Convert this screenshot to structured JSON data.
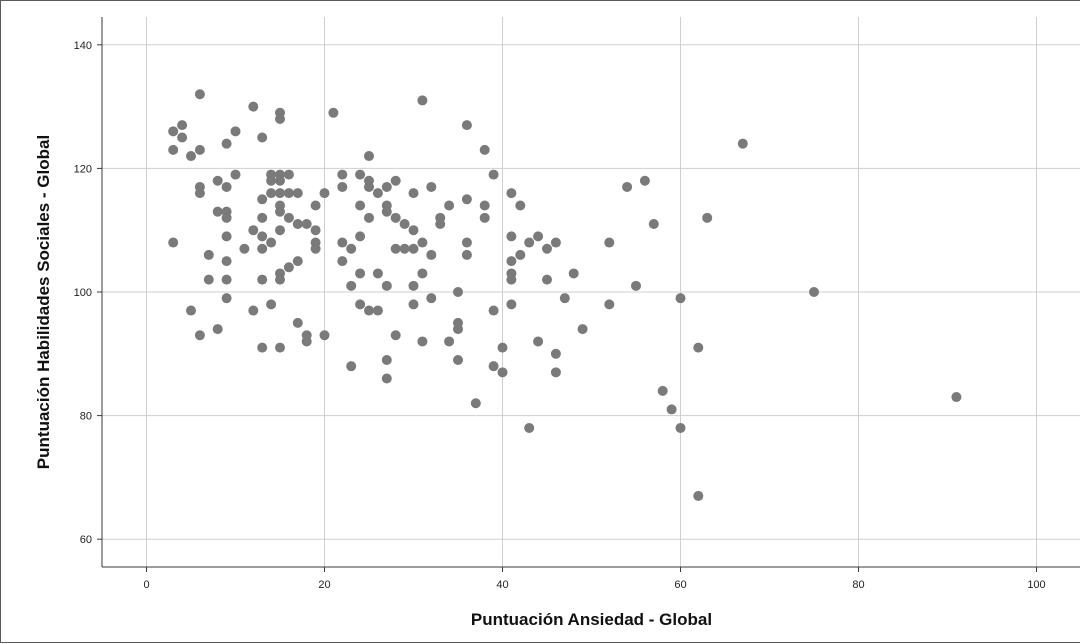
{
  "chart_data": {
    "type": "scatter",
    "title": "",
    "xlabel": "Puntuación Ansiedad - Global",
    "ylabel": "Puntuación Habilidades Sociales - Global",
    "xlim": [
      -5,
      105
    ],
    "ylim": [
      55.5,
      144.5
    ],
    "x_ticks": [
      0,
      20,
      40,
      60,
      80,
      100
    ],
    "y_ticks": [
      60,
      80,
      100,
      120,
      140
    ],
    "grid": true,
    "point_color": "#7a7a7a",
    "points": [
      [
        3,
        126
      ],
      [
        4,
        127
      ],
      [
        4,
        125
      ],
      [
        3,
        123
      ],
      [
        5,
        122
      ],
      [
        6,
        123
      ],
      [
        6,
        132
      ],
      [
        3,
        108
      ],
      [
        6,
        117
      ],
      [
        6,
        116
      ],
      [
        5,
        97
      ],
      [
        6,
        93
      ],
      [
        7,
        106
      ],
      [
        7,
        102
      ],
      [
        8,
        118
      ],
      [
        8,
        113
      ],
      [
        8,
        94
      ],
      [
        9,
        124
      ],
      [
        9,
        117
      ],
      [
        9,
        113
      ],
      [
        9,
        112
      ],
      [
        9,
        109
      ],
      [
        9,
        105
      ],
      [
        9,
        102
      ],
      [
        9,
        99
      ],
      [
        10,
        126
      ],
      [
        10,
        119
      ],
      [
        11,
        107
      ],
      [
        12,
        130
      ],
      [
        12,
        110
      ],
      [
        12,
        97
      ],
      [
        13,
        125
      ],
      [
        13,
        115
      ],
      [
        13,
        112
      ],
      [
        13,
        109
      ],
      [
        13,
        107
      ],
      [
        13,
        102
      ],
      [
        13,
        91
      ],
      [
        14,
        119
      ],
      [
        14,
        118
      ],
      [
        14,
        116
      ],
      [
        14,
        108
      ],
      [
        14,
        98
      ],
      [
        15,
        129
      ],
      [
        15,
        128
      ],
      [
        15,
        119
      ],
      [
        15,
        118
      ],
      [
        15,
        116
      ],
      [
        15,
        114
      ],
      [
        15,
        113
      ],
      [
        15,
        110
      ],
      [
        15,
        103
      ],
      [
        15,
        102
      ],
      [
        15,
        91
      ],
      [
        16,
        119
      ],
      [
        16,
        116
      ],
      [
        16,
        112
      ],
      [
        16,
        104
      ],
      [
        17,
        116
      ],
      [
        17,
        111
      ],
      [
        17,
        105
      ],
      [
        17,
        95
      ],
      [
        18,
        111
      ],
      [
        18,
        93
      ],
      [
        18,
        92
      ],
      [
        19,
        114
      ],
      [
        19,
        110
      ],
      [
        19,
        108
      ],
      [
        19,
        107
      ],
      [
        20,
        116
      ],
      [
        20,
        93
      ],
      [
        21,
        129
      ],
      [
        22,
        119
      ],
      [
        22,
        117
      ],
      [
        22,
        108
      ],
      [
        22,
        105
      ],
      [
        23,
        107
      ],
      [
        23,
        101
      ],
      [
        23,
        88
      ],
      [
        24,
        119
      ],
      [
        24,
        114
      ],
      [
        24,
        109
      ],
      [
        24,
        103
      ],
      [
        24,
        98
      ],
      [
        25,
        122
      ],
      [
        25,
        118
      ],
      [
        25,
        117
      ],
      [
        25,
        112
      ],
      [
        25,
        97
      ],
      [
        26,
        116
      ],
      [
        26,
        103
      ],
      [
        26,
        97
      ],
      [
        27,
        117
      ],
      [
        27,
        114
      ],
      [
        27,
        113
      ],
      [
        27,
        101
      ],
      [
        27,
        89
      ],
      [
        27,
        86
      ],
      [
        28,
        118
      ],
      [
        28,
        112
      ],
      [
        28,
        107
      ],
      [
        28,
        93
      ],
      [
        29,
        111
      ],
      [
        29,
        107
      ],
      [
        30,
        116
      ],
      [
        30,
        110
      ],
      [
        30,
        107
      ],
      [
        30,
        101
      ],
      [
        30,
        98
      ],
      [
        31,
        131
      ],
      [
        31,
        108
      ],
      [
        31,
        103
      ],
      [
        31,
        92
      ],
      [
        32,
        117
      ],
      [
        32,
        106
      ],
      [
        32,
        99
      ],
      [
        33,
        112
      ],
      [
        33,
        111
      ],
      [
        34,
        114
      ],
      [
        34,
        92
      ],
      [
        35,
        100
      ],
      [
        35,
        95
      ],
      [
        35,
        94
      ],
      [
        35,
        89
      ],
      [
        36,
        127
      ],
      [
        36,
        115
      ],
      [
        36,
        108
      ],
      [
        36,
        106
      ],
      [
        37,
        82
      ],
      [
        38,
        123
      ],
      [
        38,
        114
      ],
      [
        38,
        112
      ],
      [
        39,
        119
      ],
      [
        39,
        97
      ],
      [
        39,
        88
      ],
      [
        40,
        91
      ],
      [
        40,
        87
      ],
      [
        41,
        116
      ],
      [
        41,
        109
      ],
      [
        41,
        105
      ],
      [
        41,
        103
      ],
      [
        41,
        102
      ],
      [
        41,
        98
      ],
      [
        42,
        114
      ],
      [
        42,
        106
      ],
      [
        43,
        108
      ],
      [
        43,
        78
      ],
      [
        44,
        109
      ],
      [
        44,
        92
      ],
      [
        45,
        107
      ],
      [
        45,
        102
      ],
      [
        46,
        108
      ],
      [
        46,
        90
      ],
      [
        46,
        87
      ],
      [
        47,
        99
      ],
      [
        48,
        103
      ],
      [
        49,
        94
      ],
      [
        52,
        108
      ],
      [
        52,
        98
      ],
      [
        54,
        117
      ],
      [
        55,
        101
      ],
      [
        56,
        118
      ],
      [
        57,
        111
      ],
      [
        58,
        84
      ],
      [
        59,
        81
      ],
      [
        60,
        99
      ],
      [
        60,
        78
      ],
      [
        62,
        91
      ],
      [
        62,
        67
      ],
      [
        63,
        112
      ],
      [
        67,
        124
      ],
      [
        75,
        100
      ],
      [
        91,
        83
      ]
    ]
  }
}
